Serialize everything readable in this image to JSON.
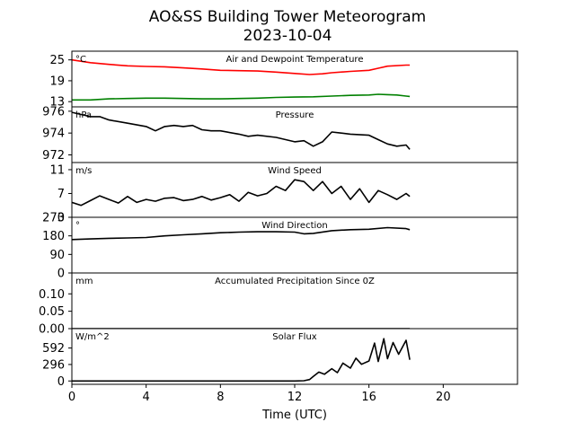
{
  "figure": {
    "title_line1": "AO&SS Building Tower Meteorogram",
    "title_line2": "2023-10-04",
    "xlabel": "Time (UTC)",
    "xlim": [
      0,
      24
    ],
    "xticks": [
      0,
      4,
      8,
      12,
      16,
      20
    ]
  },
  "chart_data": [
    {
      "type": "line",
      "title": "Air and Dewpoint Temperature",
      "unit": "°C",
      "ylim": [
        11.5,
        27.5
      ],
      "yticks": [
        13,
        19,
        25
      ],
      "series": [
        {
          "color": "#ff0000",
          "x": [
            0,
            1,
            2,
            3,
            4,
            5,
            6,
            7,
            8,
            9,
            10,
            11,
            12,
            12.8,
            13.5,
            14,
            15,
            16,
            16.5,
            17,
            18,
            18.2
          ],
          "y": [
            25.0,
            24.2,
            23.7,
            23.3,
            23.1,
            23.0,
            22.7,
            22.4,
            22.0,
            21.9,
            21.8,
            21.5,
            21.1,
            20.8,
            21.0,
            21.3,
            21.7,
            22.0,
            22.6,
            23.2,
            23.5,
            23.5
          ]
        },
        {
          "color": "#008000",
          "x": [
            0,
            1,
            2,
            3,
            4,
            5,
            6,
            7,
            8,
            9,
            10,
            11,
            12,
            13,
            14,
            15,
            16,
            16.5,
            17,
            17.5,
            18,
            18.2
          ],
          "y": [
            13.5,
            13.5,
            13.8,
            13.9,
            14.0,
            14.0,
            13.9,
            13.8,
            13.8,
            13.9,
            14.0,
            14.2,
            14.3,
            14.4,
            14.6,
            14.8,
            14.9,
            15.1,
            15.0,
            14.9,
            14.6,
            14.5
          ]
        }
      ]
    },
    {
      "type": "line",
      "title": "Pressure",
      "unit": "hPa",
      "ylim": [
        971.3,
        976.4
      ],
      "yticks": [
        972,
        974,
        976
      ],
      "series": [
        {
          "color": "#000000",
          "x": [
            0,
            0.5,
            1,
            1.5,
            2,
            3,
            4,
            4.5,
            5,
            5.5,
            6,
            6.5,
            7,
            7.5,
            8,
            9,
            9.5,
            10,
            11,
            12,
            12.5,
            13,
            13.5,
            14,
            14.5,
            15,
            16,
            16.5,
            17,
            17.5,
            18,
            18.2
          ],
          "y": [
            975.9,
            975.7,
            975.5,
            975.5,
            975.2,
            974.9,
            974.6,
            974.2,
            974.6,
            974.7,
            974.6,
            974.7,
            974.3,
            974.2,
            974.2,
            973.9,
            973.7,
            973.8,
            973.6,
            973.2,
            973.3,
            972.8,
            973.2,
            974.1,
            974.0,
            973.9,
            973.8,
            973.4,
            973.0,
            972.8,
            972.9,
            972.5
          ]
        }
      ]
    },
    {
      "type": "line",
      "title": "Wind Speed",
      "unit": "m/s",
      "ylim": [
        3,
        12.2
      ],
      "yticks": [
        3,
        7,
        11
      ],
      "series": [
        {
          "color": "#000000",
          "x": [
            0,
            0.5,
            1,
            1.5,
            2,
            2.5,
            3,
            3.5,
            4,
            4.5,
            5,
            5.5,
            6,
            6.5,
            7,
            7.5,
            8,
            8.5,
            9,
            9.5,
            10,
            10.5,
            11,
            11.5,
            12,
            12.5,
            13,
            13.5,
            14,
            14.5,
            15,
            15.5,
            16,
            16.5,
            17,
            17.5,
            18,
            18.2
          ],
          "y": [
            5.5,
            5.0,
            5.8,
            6.6,
            6.0,
            5.4,
            6.5,
            5.5,
            6.0,
            5.7,
            6.2,
            6.3,
            5.8,
            6.0,
            6.5,
            5.9,
            6.3,
            6.8,
            5.7,
            7.2,
            6.6,
            7.0,
            8.2,
            7.5,
            9.3,
            9.0,
            7.5,
            9.0,
            7.0,
            8.2,
            6.0,
            7.8,
            5.5,
            7.5,
            6.8,
            6.0,
            7.0,
            6.5
          ]
        }
      ]
    },
    {
      "type": "line",
      "title": "Wind Direction",
      "unit": "°",
      "ylim": [
        0,
        270
      ],
      "yticks": [
        0,
        90,
        180,
        270
      ],
      "series": [
        {
          "color": "#000000",
          "x": [
            0,
            1,
            2,
            3,
            4,
            5,
            6,
            7,
            8,
            9,
            10,
            11,
            12,
            12.5,
            13,
            14,
            15,
            16,
            17,
            18,
            18.2
          ],
          "y": [
            162,
            165,
            168,
            170,
            172,
            180,
            185,
            190,
            195,
            198,
            200,
            200,
            198,
            190,
            192,
            205,
            210,
            212,
            220,
            215,
            210
          ]
        }
      ]
    },
    {
      "type": "line",
      "title": "Accumulated Precipitation Since 0Z",
      "unit": "mm",
      "ylim": [
        0,
        0.16
      ],
      "yticks": [
        0.0,
        0.05,
        0.1
      ],
      "series": [
        {
          "color": "#000000",
          "x": [
            0,
            18.2
          ],
          "y": [
            0,
            0
          ]
        }
      ]
    },
    {
      "type": "line",
      "title": "Solar Flux",
      "unit": "W/m^2",
      "ylim": [
        -60,
        940
      ],
      "yticks": [
        0,
        296,
        592
      ],
      "series": [
        {
          "color": "#000000",
          "x": [
            0,
            12,
            12.5,
            12.8,
            13,
            13.3,
            13.6,
            14,
            14.3,
            14.6,
            15,
            15.3,
            15.6,
            16,
            16.3,
            16.5,
            16.8,
            17,
            17.3,
            17.6,
            18,
            18.2
          ],
          "y": [
            0,
            0,
            5,
            25,
            80,
            160,
            120,
            220,
            150,
            320,
            230,
            410,
            300,
            360,
            680,
            350,
            760,
            400,
            690,
            480,
            730,
            380
          ]
        }
      ]
    }
  ]
}
